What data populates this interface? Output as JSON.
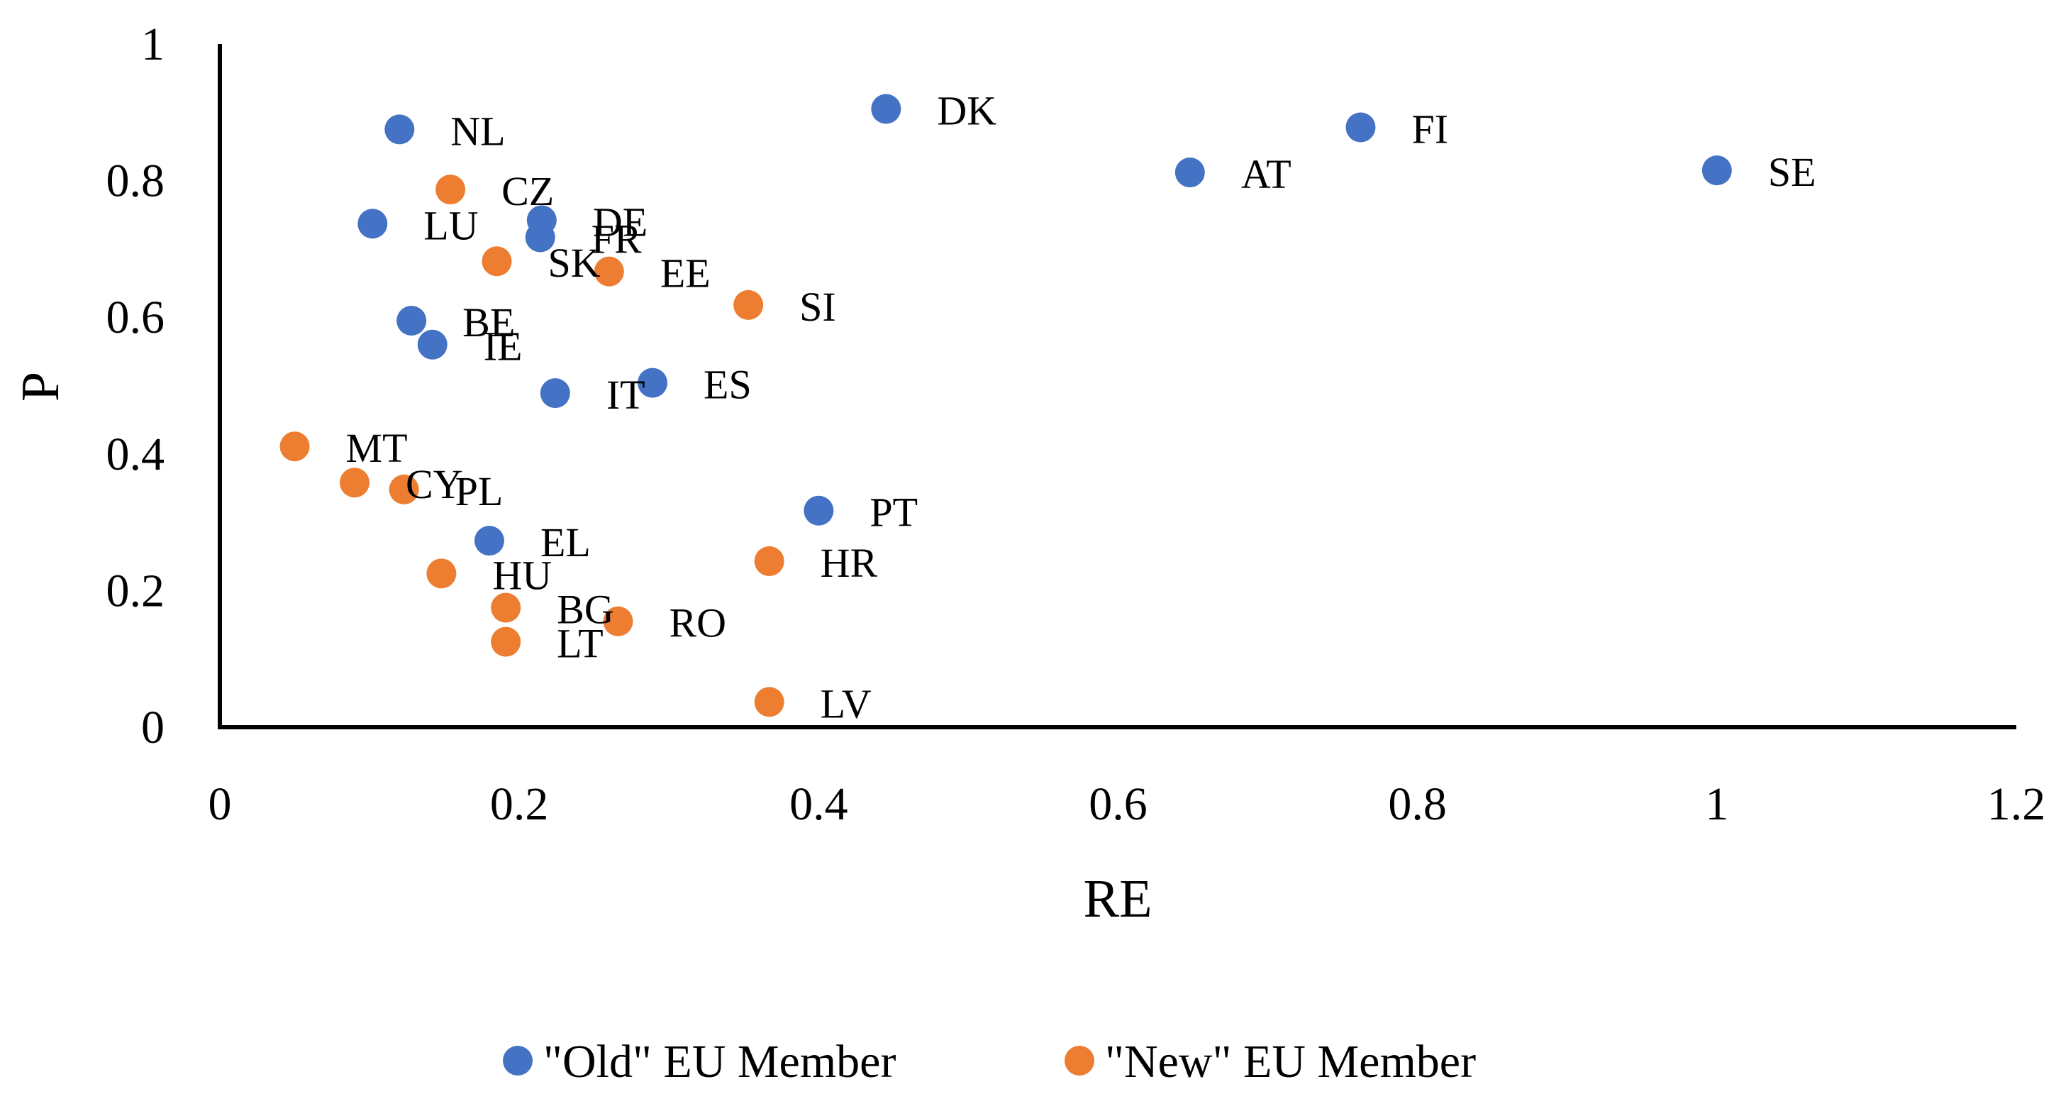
{
  "chart_data": {
    "type": "scatter",
    "title": "",
    "xlabel": "RE",
    "ylabel": "P",
    "xlim": [
      0,
      1.2
    ],
    "ylim": [
      0,
      1
    ],
    "xticks": [
      "0",
      "0.2",
      "0.4",
      "0.6",
      "0.8",
      "1",
      "1.2"
    ],
    "yticks": [
      "0",
      "0.2",
      "0.4",
      "0.6",
      "0.8",
      "1"
    ],
    "grid": false,
    "legend_position": "bottom",
    "series": [
      {
        "name": "\"Old\" EU Member",
        "color": "#4472C4",
        "points": [
          {
            "label": "NL",
            "x": 0.12,
            "y": 0.875
          },
          {
            "label": "DK",
            "x": 0.445,
            "y": 0.905
          },
          {
            "label": "FI",
            "x": 0.762,
            "y": 0.878
          },
          {
            "label": "AT",
            "x": 0.648,
            "y": 0.812
          },
          {
            "label": "SE",
            "x": 1.0,
            "y": 0.815
          },
          {
            "label": "LU",
            "x": 0.102,
            "y": 0.737
          },
          {
            "label": "DE",
            "x": 0.215,
            "y": 0.742
          },
          {
            "label": "FR",
            "x": 0.214,
            "y": 0.717
          },
          {
            "label": "BE",
            "x": 0.128,
            "y": 0.595
          },
          {
            "label": "IE",
            "x": 0.142,
            "y": 0.56
          },
          {
            "label": "IT",
            "x": 0.224,
            "y": 0.489
          },
          {
            "label": "ES",
            "x": 0.289,
            "y": 0.504
          },
          {
            "label": "PT",
            "x": 0.4,
            "y": 0.317
          },
          {
            "label": "EL",
            "x": 0.18,
            "y": 0.273
          }
        ]
      },
      {
        "name": "\"New\" EU Member",
        "color": "#ED7D31",
        "points": [
          {
            "label": "CZ",
            "x": 0.154,
            "y": 0.787
          },
          {
            "label": "SK",
            "x": 0.185,
            "y": 0.682
          },
          {
            "label": "EE",
            "x": 0.26,
            "y": 0.667
          },
          {
            "label": "SI",
            "x": 0.353,
            "y": 0.618
          },
          {
            "label": "MT",
            "x": 0.05,
            "y": 0.411
          },
          {
            "label": "CY",
            "x": 0.09,
            "y": 0.358
          },
          {
            "label": "PL",
            "x": 0.123,
            "y": 0.348
          },
          {
            "label": "HU",
            "x": 0.148,
            "y": 0.225
          },
          {
            "label": "HR",
            "x": 0.367,
            "y": 0.243
          },
          {
            "label": "BG",
            "x": 0.191,
            "y": 0.175
          },
          {
            "label": "RO",
            "x": 0.266,
            "y": 0.155
          },
          {
            "label": "LT",
            "x": 0.191,
            "y": 0.125
          },
          {
            "label": "LV",
            "x": 0.367,
            "y": 0.037
          }
        ]
      }
    ]
  },
  "legend": {
    "old_label": "\"Old\" EU Member",
    "new_label": "\"New\" EU Member"
  }
}
